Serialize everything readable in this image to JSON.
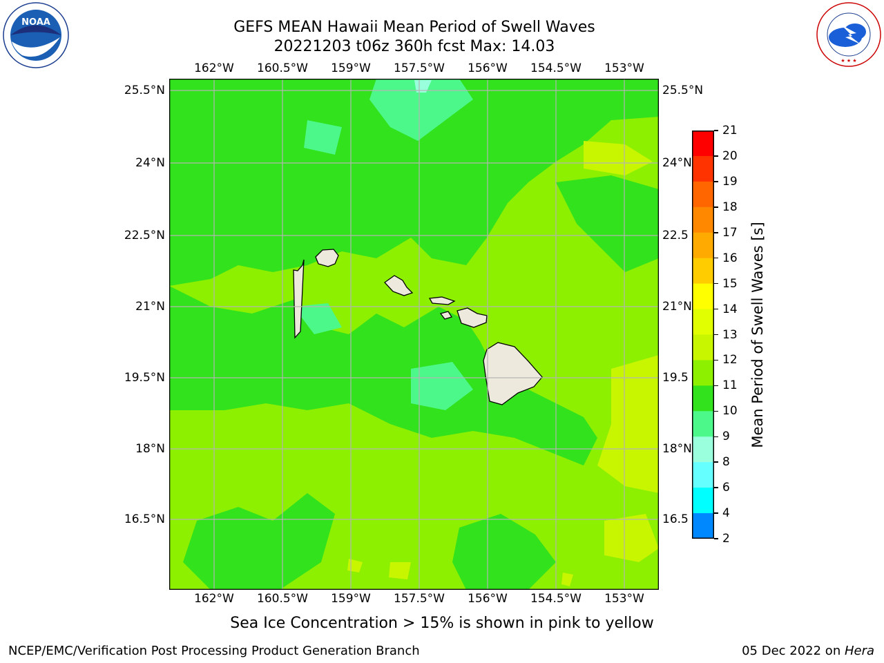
{
  "logos": {
    "left": {
      "text_top": "NATIONAL OCEANIC AND ATMOSPHERIC ADMINISTRATION",
      "text_bottom": "U.S. DEPARTMENT OF COMMERCE",
      "center": "NOAA"
    },
    "right": {
      "text_arc": "NATIONAL WEATHER SERVICE",
      "stars": "★ ★ ★"
    }
  },
  "title": {
    "line1": "GEFS MEAN Hawaii Mean Period of Swell Waves",
    "line2": "20221203 t06z 360h fcst   Max: 14.03"
  },
  "map": {
    "lon_ticks": [
      "162°W",
      "160.5°W",
      "159°W",
      "157.5°W",
      "156°W",
      "154.5°W",
      "153°W"
    ],
    "lat_ticks": [
      "25.5°N",
      "24°N",
      "22.5°N",
      "21°N",
      "19.5°N",
      "18°N",
      "16.5°N"
    ],
    "lat_ticks_right": [
      "25.5°N",
      "24°N",
      "22.5",
      "21°N",
      "19.5",
      "18°N",
      "16.5"
    ],
    "colors": {
      "ocean_main": "#8cf000",
      "ocean_dark": "#32e21c",
      "ocean_cyan": "#4cf88a",
      "ocean_yellow": "#c8f500",
      "land": "#ede9dc",
      "grid": "#b4b4b4"
    }
  },
  "colorbar": {
    "label": "Mean Period of Swell Waves [s]",
    "ticks": [
      "21",
      "20",
      "19",
      "18",
      "17",
      "16",
      "15",
      "14",
      "13",
      "12",
      "11",
      "10",
      "9",
      "8",
      "6",
      "4",
      "2"
    ],
    "colors": [
      "#ff0000",
      "#ff3300",
      "#ff6600",
      "#ff8800",
      "#ffaa00",
      "#ffcc00",
      "#ffff00",
      "#e1ff00",
      "#c8f500",
      "#8cf000",
      "#32e21c",
      "#4cf88a",
      "#99ffdd",
      "#66ffff",
      "#00ffff",
      "#0088ff",
      "#0000ff"
    ]
  },
  "caption": "Sea Ice Concentration > 15% is shown in pink to yellow",
  "footer": {
    "left": "NCEP/EMC/Verification Post Processing Product Generation Branch",
    "right_date": "05 Dec 2022 on ",
    "right_machine": "Hera"
  }
}
